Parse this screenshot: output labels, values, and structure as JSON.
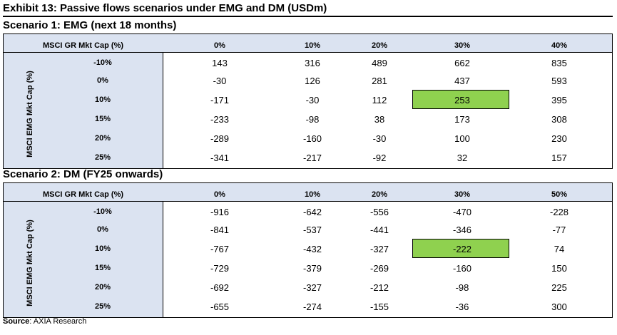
{
  "exhibit_title": "Exhibit 13: Passive flows scenarios under EMG and DM (USDm)",
  "source": {
    "label": "Source",
    "text": ": AXIA Research"
  },
  "highlight_color": "#8fd14f",
  "header_fill": "#dbe3f1",
  "scenarios": [
    {
      "title": "Scenario 1: EMG (next 18 months)",
      "col_axis_label": "MSCI GR Mkt Cap (%)",
      "row_axis_label": "MSCI EMG Mkt Cap (%)",
      "columns": [
        "0%",
        "10%",
        "20%",
        "30%",
        "40%"
      ],
      "rows": [
        {
          "label": "-10%",
          "values": [
            "143",
            "316",
            "489",
            "662",
            "835"
          ]
        },
        {
          "label": "0%",
          "values": [
            "-30",
            "126",
            "281",
            "437",
            "593"
          ]
        },
        {
          "label": "10%",
          "values": [
            "-171",
            "-30",
            "112",
            "253",
            "395"
          ]
        },
        {
          "label": "15%",
          "values": [
            "-233",
            "-98",
            "38",
            "173",
            "308"
          ]
        },
        {
          "label": "20%",
          "values": [
            "-289",
            "-160",
            "-30",
            "100",
            "230"
          ]
        },
        {
          "label": "25%",
          "values": [
            "-341",
            "-217",
            "-92",
            "32",
            "157"
          ]
        }
      ],
      "highlight": {
        "row": 2,
        "col": 3
      }
    },
    {
      "title": "Scenario 2: DM (FY25 onwards)",
      "col_axis_label": "MSCI GR Mkt Cap (%)",
      "row_axis_label": "MSCI EMG Mkt Cap (%)",
      "columns": [
        "0%",
        "10%",
        "20%",
        "30%",
        "50%"
      ],
      "rows": [
        {
          "label": "-10%",
          "values": [
            "-916",
            "-642",
            "-556",
            "-470",
            "-228"
          ]
        },
        {
          "label": "0%",
          "values": [
            "-841",
            "-537",
            "-441",
            "-346",
            "-77"
          ]
        },
        {
          "label": "10%",
          "values": [
            "-767",
            "-432",
            "-327",
            "-222",
            "74"
          ]
        },
        {
          "label": "15%",
          "values": [
            "-729",
            "-379",
            "-269",
            "-160",
            "150"
          ]
        },
        {
          "label": "20%",
          "values": [
            "-692",
            "-327",
            "-212",
            "-98",
            "225"
          ]
        },
        {
          "label": "25%",
          "values": [
            "-655",
            "-274",
            "-155",
            "-36",
            "300"
          ]
        }
      ],
      "highlight": {
        "row": 2,
        "col": 3
      }
    }
  ]
}
